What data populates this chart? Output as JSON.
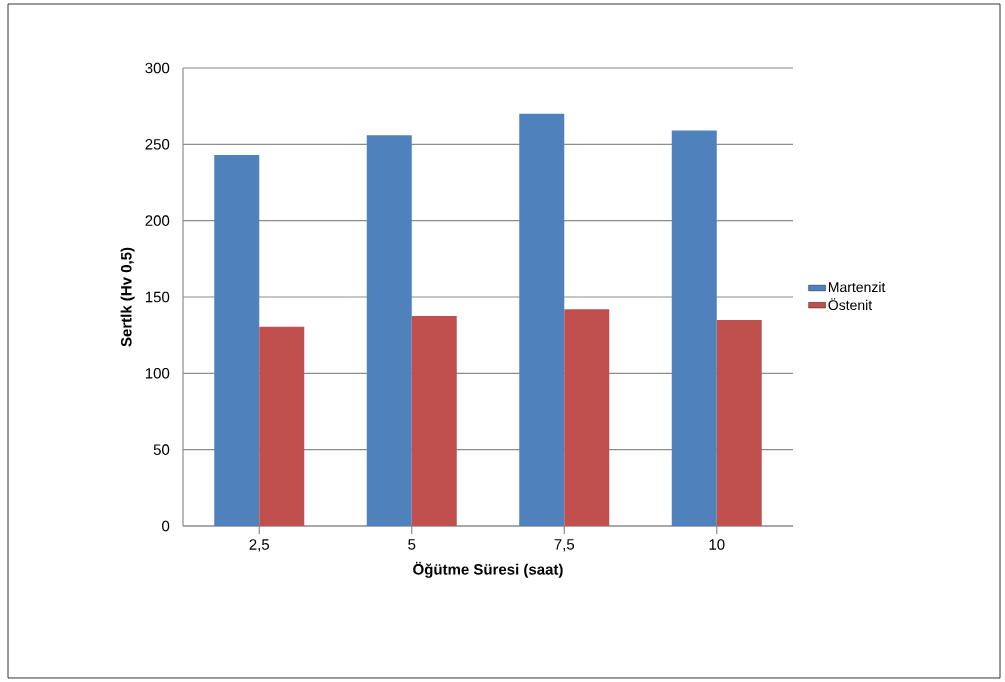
{
  "chart_data": {
    "type": "bar",
    "xlabel": "Öğütme Süresi (saat)",
    "ylabel": "Sertlk (Hv 0,5)",
    "categories": [
      "2,5",
      "5",
      "7,5",
      "10"
    ],
    "series": [
      {
        "name": "Martenzit",
        "color": "#4f81bd",
        "values": [
          243,
          256,
          270,
          259
        ]
      },
      {
        "name": "Östenit",
        "color": "#c0504d",
        "values": [
          130.5,
          137.5,
          142,
          135
        ]
      }
    ],
    "ylim": [
      0,
      300
    ],
    "yticks": [
      0,
      50,
      100,
      150,
      200,
      250,
      300
    ],
    "grid": "y",
    "legend": "right"
  }
}
